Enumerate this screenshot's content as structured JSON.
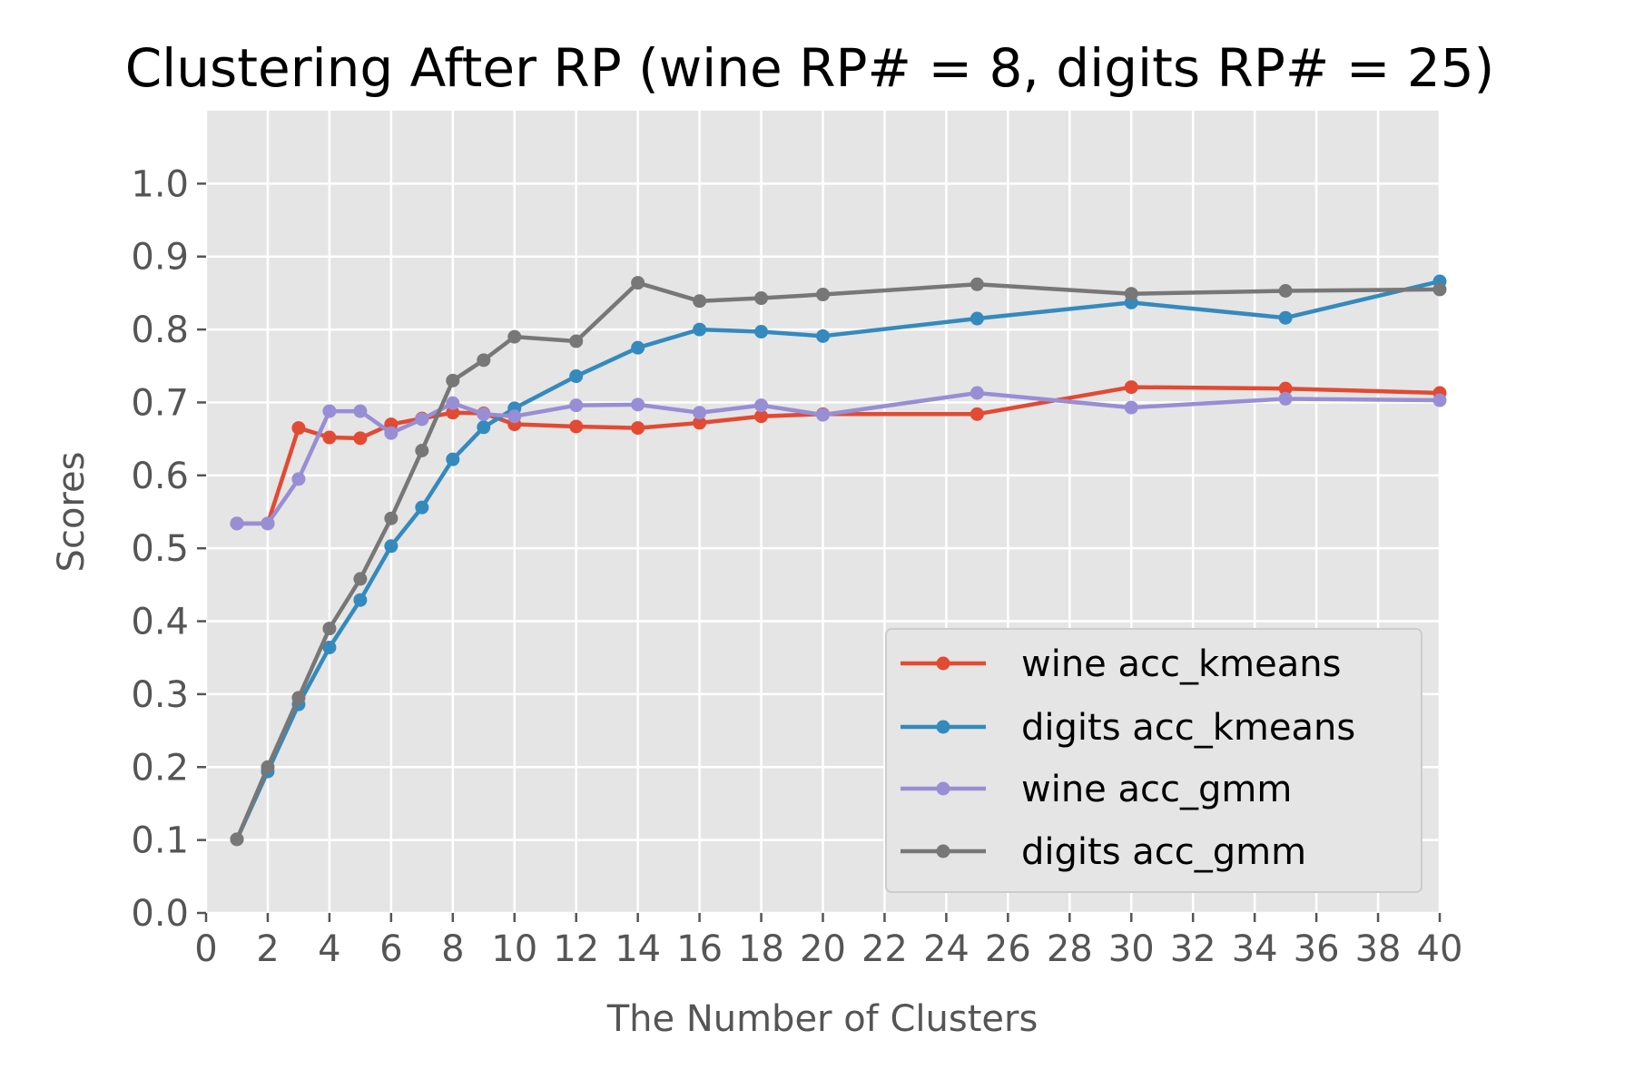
{
  "chart_data": {
    "type": "line",
    "title": "Clustering After RP (wine RP# = 8, digits RP# = 25)",
    "xlabel": "The Number of Clusters",
    "ylabel": "Scores",
    "xlim": [
      0,
      40
    ],
    "ylim": [
      0,
      1.1
    ],
    "xticks": [
      0,
      2,
      4,
      6,
      8,
      10,
      12,
      14,
      16,
      18,
      20,
      22,
      24,
      26,
      28,
      30,
      32,
      34,
      36,
      38,
      40
    ],
    "yticks": [
      0.0,
      0.1,
      0.2,
      0.3,
      0.4,
      0.5,
      0.6,
      0.7,
      0.8,
      0.9,
      1.0
    ],
    "ytick_labels": [
      "0.0",
      "0.1",
      "0.2",
      "0.3",
      "0.4",
      "0.5",
      "0.6",
      "0.7",
      "0.8",
      "0.9",
      "1.0"
    ],
    "grid": true,
    "legend_position": "lower-right",
    "x": [
      1,
      2,
      3,
      4,
      5,
      6,
      7,
      8,
      9,
      10,
      12,
      14,
      16,
      18,
      20,
      25,
      30,
      35,
      40
    ],
    "series": [
      {
        "name": "wine acc_kmeans",
        "color": "#E24A33",
        "values": [
          0.534,
          0.534,
          0.665,
          0.652,
          0.651,
          0.67,
          0.678,
          0.686,
          0.685,
          0.67,
          0.667,
          0.665,
          0.672,
          0.681,
          0.684,
          0.684,
          0.721,
          0.719,
          0.713
        ]
      },
      {
        "name": "digits acc_kmeans",
        "color": "#348ABD",
        "values": [
          0.101,
          0.194,
          0.286,
          0.364,
          0.429,
          0.503,
          0.556,
          0.622,
          0.666,
          0.692,
          0.736,
          0.775,
          0.8,
          0.797,
          0.791,
          0.815,
          0.837,
          0.816,
          0.866
        ]
      },
      {
        "name": "wine acc_gmm",
        "color": "#988ED5",
        "values": [
          0.534,
          0.534,
          0.595,
          0.688,
          0.688,
          0.658,
          0.677,
          0.699,
          0.684,
          0.681,
          0.696,
          0.697,
          0.686,
          0.696,
          0.683,
          0.713,
          0.693,
          0.705,
          0.703
        ]
      },
      {
        "name": "digits acc_gmm",
        "color": "#777777",
        "values": [
          0.101,
          0.2,
          0.295,
          0.39,
          0.458,
          0.541,
          0.634,
          0.73,
          0.758,
          0.79,
          0.784,
          0.864,
          0.839,
          0.843,
          0.848,
          0.862,
          0.849,
          0.853,
          0.855
        ]
      }
    ]
  }
}
